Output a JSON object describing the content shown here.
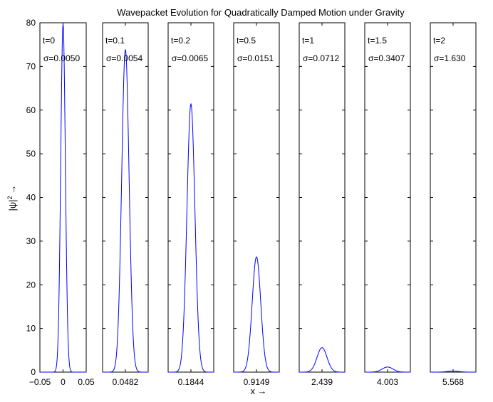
{
  "chart_data": {
    "type": "line",
    "title": "Wavepacket Evolution for Quadratically Damped Motion under Gravity",
    "ylabel_base": "|ψ|",
    "ylabel_sup": "2",
    "ylabel_arrow": "→",
    "xlabel": "x →",
    "ylim": [
      0,
      80
    ],
    "y_ticks": [
      0,
      10,
      20,
      30,
      40,
      50,
      60,
      70,
      80
    ],
    "line_color": "#0000ff",
    "first_panel_x_ticks": [
      "−0.05",
      "0",
      "0.05"
    ],
    "panels": [
      {
        "t_label": "t=0",
        "sigma_label": "σ=0.0050",
        "center_label": "0",
        "peak": 79.8
      },
      {
        "t_label": "t=0.1",
        "sigma_label": "σ=0.0054",
        "center_label": "0.0482",
        "peak": 73.9
      },
      {
        "t_label": "t=0.2",
        "sigma_label": "σ=0.0065",
        "center_label": "0.1844",
        "peak": 61.4
      },
      {
        "t_label": "t=0.5",
        "sigma_label": "σ=0.0151",
        "center_label": "0.9149",
        "peak": 26.4
      },
      {
        "t_label": "t=1",
        "sigma_label": "σ=0.0712",
        "center_label": "2.439",
        "peak": 5.6
      },
      {
        "t_label": "t=1.5",
        "sigma_label": "σ=0.3407",
        "center_label": "4.003",
        "peak": 1.17
      },
      {
        "t_label": "t=2",
        "sigma_label": "σ=1.630",
        "center_label": "5.568",
        "peak": 0.24
      }
    ]
  }
}
